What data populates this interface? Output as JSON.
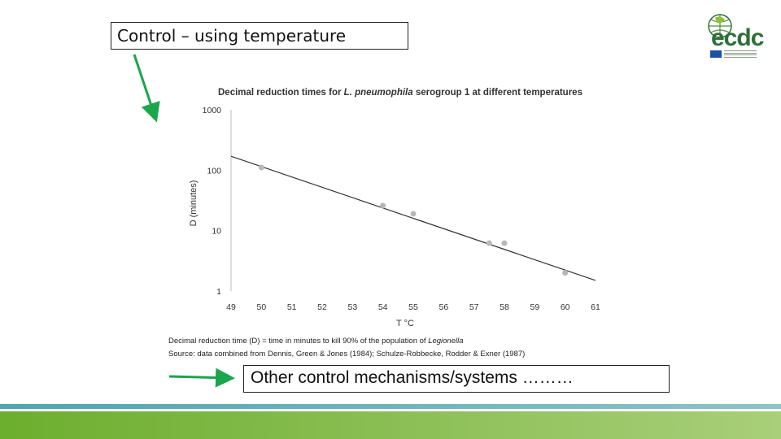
{
  "slide": {
    "heading": "Control – using temperature",
    "bottom_text": "Other control mechanisms/systems ………",
    "logo_text": "ecdc",
    "accent_arrow_color": "#1aa64b",
    "footer_colors": [
      "#4fa5b0",
      "#6cae2e"
    ]
  },
  "chart_data": {
    "type": "scatter",
    "title_prefix": "Decimal reduction times for ",
    "title_italic": "L. pneumophila",
    "title_suffix": " serogroup 1 at different temperatures",
    "xlabel": "T °C",
    "ylabel": "D (minutes)",
    "xlim": [
      49,
      61
    ],
    "ylim": [
      1,
      1000
    ],
    "yscale": "log",
    "x_ticks": [
      "49",
      "50",
      "51",
      "52",
      "53",
      "54",
      "55",
      "56",
      "57",
      "58",
      "59",
      "60",
      "61"
    ],
    "y_ticks": [
      "1",
      "10",
      "100",
      "1000"
    ],
    "points": [
      {
        "x": 50,
        "y": 111
      },
      {
        "x": 54,
        "y": 26
      },
      {
        "x": 55,
        "y": 19
      },
      {
        "x": 57.5,
        "y": 6.2
      },
      {
        "x": 58,
        "y": 6.2
      },
      {
        "x": 60,
        "y": 2.0
      }
    ],
    "fit_line": {
      "x": [
        49,
        61
      ],
      "y": [
        170,
        1.5
      ]
    },
    "note_prefix": "Decimal reduction time (D) = time in minutes to kill 90% of the population of ",
    "note_italic": "Legionella",
    "source": "Source: data combined from Dennis, Green & Jones (1984); Schulze-Robbecke, Rodder & Exner (1987)",
    "point_color": "#b8b8b8",
    "line_color": "#333333"
  }
}
